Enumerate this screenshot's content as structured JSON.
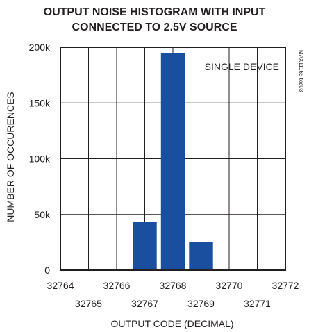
{
  "chart_data": {
    "type": "bar",
    "title_lines": [
      "OUTPUT NOISE HISTOGRAM WITH INPUT",
      "CONNECTED TO 2.5V SOURCE"
    ],
    "xlabel": "OUTPUT CODE (DECIMAL)",
    "ylabel": "NUMBER OF OCCURENCES",
    "x_ticks_row1": [
      "32764",
      "32766",
      "32768",
      "32770",
      "32772"
    ],
    "x_ticks_row2": [
      "32765",
      "32767",
      "32769",
      "32771"
    ],
    "y_ticks": [
      "0",
      "50k",
      "100k",
      "150k",
      "200k"
    ],
    "xlim": [
      32764,
      32772
    ],
    "ylim": [
      0,
      200000
    ],
    "categories": [
      32767,
      32768,
      32769
    ],
    "values": [
      43000,
      195000,
      25000
    ],
    "grid": true,
    "bar_color": "#1a4fa0",
    "annotation": "SINGLE DEVICE",
    "side_label": "MAX11165 toc03"
  }
}
